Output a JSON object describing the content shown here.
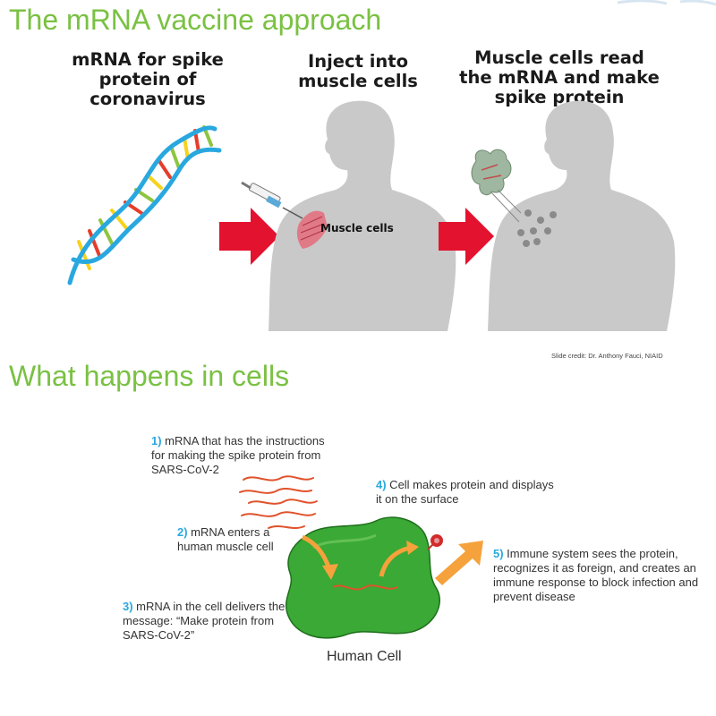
{
  "top": {
    "title": "The mRNA vaccine approach",
    "panels": [
      {
        "label_line1": "mRNA for spike",
        "label_line2": "protein of",
        "label_line3": "coronavirus"
      },
      {
        "label_line1": "Inject into",
        "label_line2": "muscle cells"
      },
      {
        "label_line1": "Muscle cells read",
        "label_line2": "the mRNA and make",
        "label_line3": "spike protein"
      }
    ],
    "muscle_label": "Muscle cells",
    "credit": "Slide credit: Dr. Anthony Fauci, NIAID"
  },
  "bottom": {
    "title": "What happens in cells",
    "steps": [
      {
        "num": "1)",
        "line1": " mRNA that has the instructions",
        "line2": "for making the spike protein from",
        "line3": "SARS-CoV-2"
      },
      {
        "num": "2)",
        "line1": " mRNA enters a",
        "line2": "human muscle cell"
      },
      {
        "num": "3)",
        "line1": " mRNA in the cell delivers the",
        "line2": "message: “Make protein from",
        "line3": "SARS-CoV-2”"
      },
      {
        "num": "4)",
        "line1": " Cell makes protein and displays",
        "line2": "it on the surface"
      },
      {
        "num": "5)",
        "line1": " Immune system sees the protein,",
        "line2": "recognizes it as foreign, and creates an",
        "line3": "immune response to block infection and",
        "line4": "prevent disease"
      }
    ],
    "cell_caption": "Human Cell"
  },
  "colors": {
    "title_green": "#7ac143",
    "step_number_blue": "#29a8e0",
    "arrow_red": "#e3122f",
    "body_gray": "#c9c9c9",
    "cell_green": "#3aa935",
    "orange_arrow": "#f5a23c",
    "mrna_red": "#e0522c"
  }
}
